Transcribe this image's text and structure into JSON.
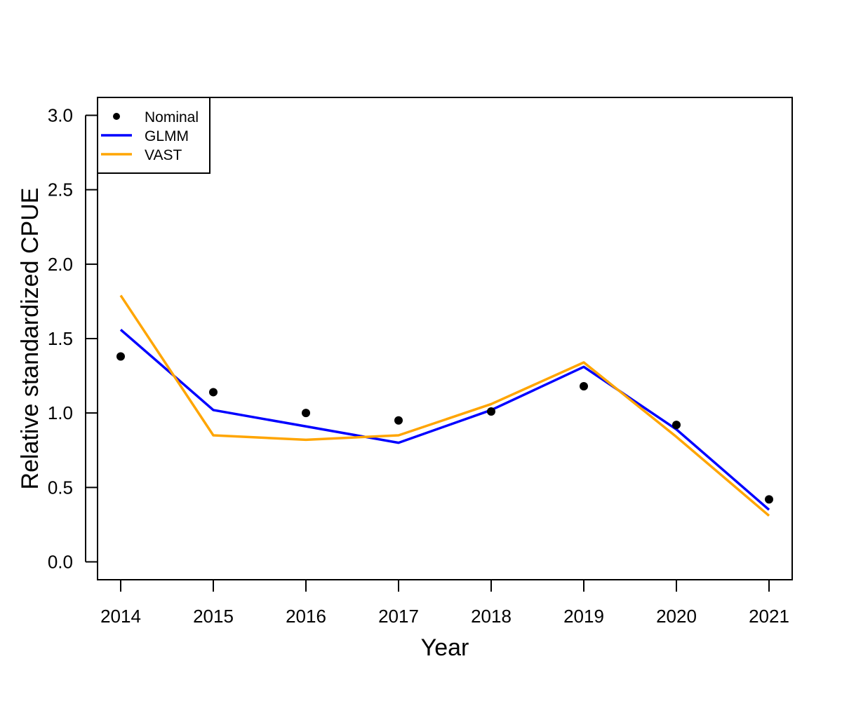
{
  "colors": {
    "nominal": "#000000",
    "glmm": "#0000FF",
    "vast": "#FFA500",
    "axis": "#000000",
    "background": "#FFFFFF"
  },
  "legend": {
    "placement": "top-left",
    "entries": [
      {
        "label": "Nominal",
        "symbol": "point",
        "color": "#000000"
      },
      {
        "label": "GLMM",
        "symbol": "line",
        "color": "#0000FF"
      },
      {
        "label": "VAST",
        "symbol": "line",
        "color": "#FFA500"
      }
    ]
  },
  "chart_data": {
    "type": "line",
    "title": "",
    "xlabel": "Year",
    "ylabel": "Relative standardized CPUE",
    "x": [
      2014,
      2015,
      2016,
      2017,
      2018,
      2019,
      2020,
      2021
    ],
    "xlim": [
      2013.75,
      2021.25
    ],
    "ylim": [
      -0.12,
      3.12
    ],
    "xticks": [
      "2014",
      "2015",
      "2016",
      "2017",
      "2018",
      "2019",
      "2020",
      "2021"
    ],
    "yticks": [
      "0.0",
      "0.5",
      "1.0",
      "1.5",
      "2.0",
      "2.5",
      "3.0"
    ],
    "grid": false,
    "series": [
      {
        "name": "Nominal",
        "kind": "points",
        "color": "#000000",
        "values": [
          1.38,
          1.14,
          1.0,
          0.95,
          1.01,
          1.18,
          0.92,
          0.42
        ]
      },
      {
        "name": "GLMM",
        "kind": "line",
        "color": "#0000FF",
        "values": [
          1.56,
          1.02,
          0.91,
          0.8,
          1.02,
          1.31,
          0.89,
          0.35
        ]
      },
      {
        "name": "VAST",
        "kind": "line",
        "color": "#FFA500",
        "values": [
          1.79,
          0.85,
          0.82,
          0.85,
          1.06,
          1.34,
          0.84,
          0.31
        ]
      }
    ]
  }
}
